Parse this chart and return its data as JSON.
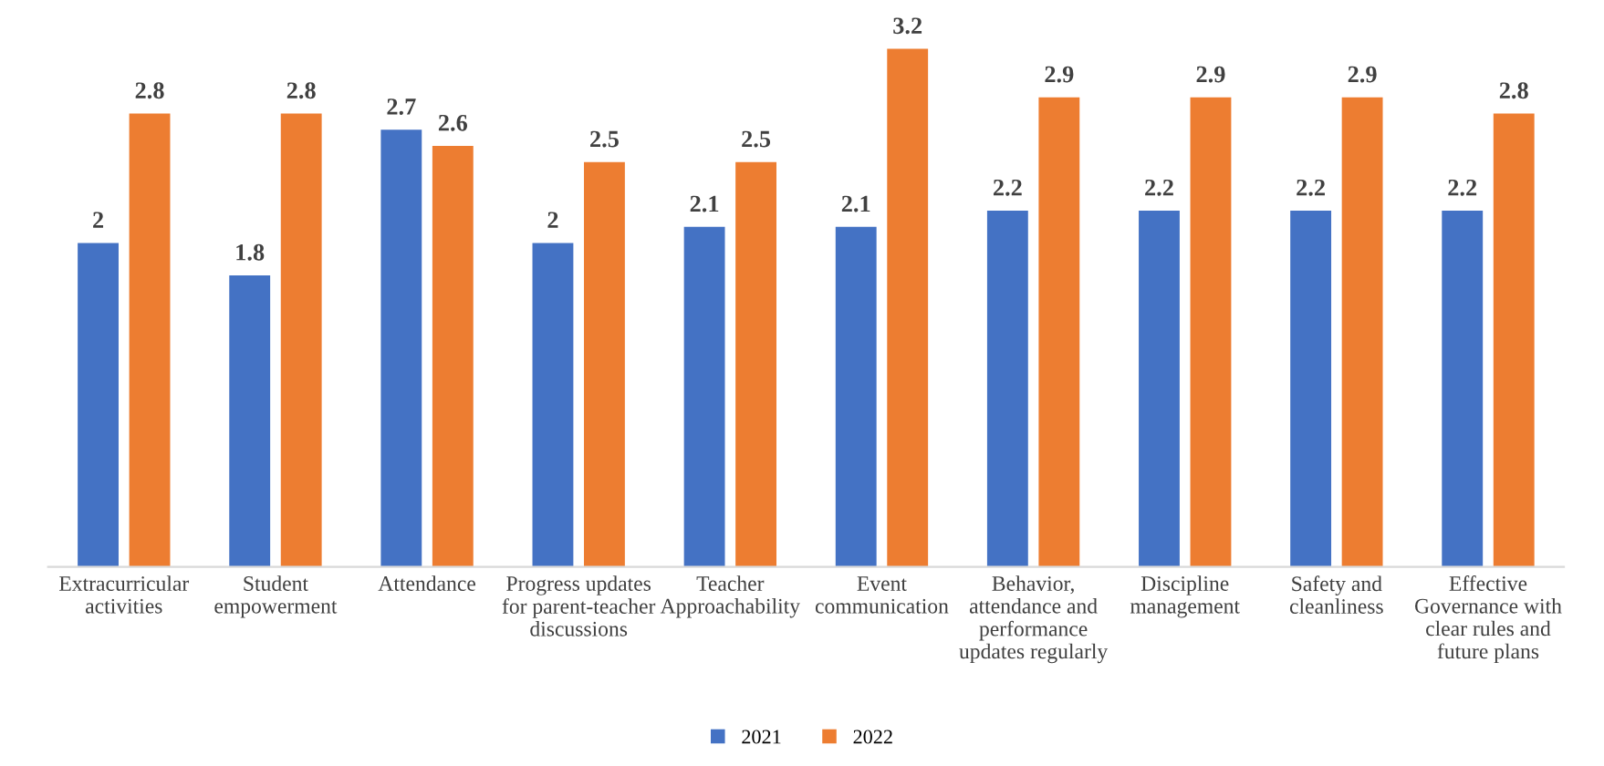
{
  "chart_data": {
    "type": "bar",
    "categories": [
      "Extracurricular\nactivities",
      "Student\nempowerment",
      "Attendance",
      "Progress updates\nfor parent-teacher\ndiscussions",
      "Teacher\nApproachability",
      "Event\ncommunication",
      "Behavior,\nattendance and\nperformance\nupdates regularly",
      "Discipline\nmanagement",
      "Safety and\ncleanliness",
      "Effective\nGovernance with\nclear rules and\nfuture plans"
    ],
    "series": [
      {
        "name": "2021",
        "color": "#4472c4",
        "values": [
          2,
          1.8,
          2.7,
          2,
          2.1,
          2.1,
          2.2,
          2.2,
          2.2,
          2.2
        ]
      },
      {
        "name": "2022",
        "color": "#ed7d31",
        "values": [
          2.8,
          2.8,
          2.6,
          2.5,
          2.5,
          3.2,
          2.9,
          2.9,
          2.9,
          2.8
        ]
      }
    ],
    "data_labels": true,
    "grid": false,
    "legend": "bottom",
    "tick_labels": "x"
  }
}
